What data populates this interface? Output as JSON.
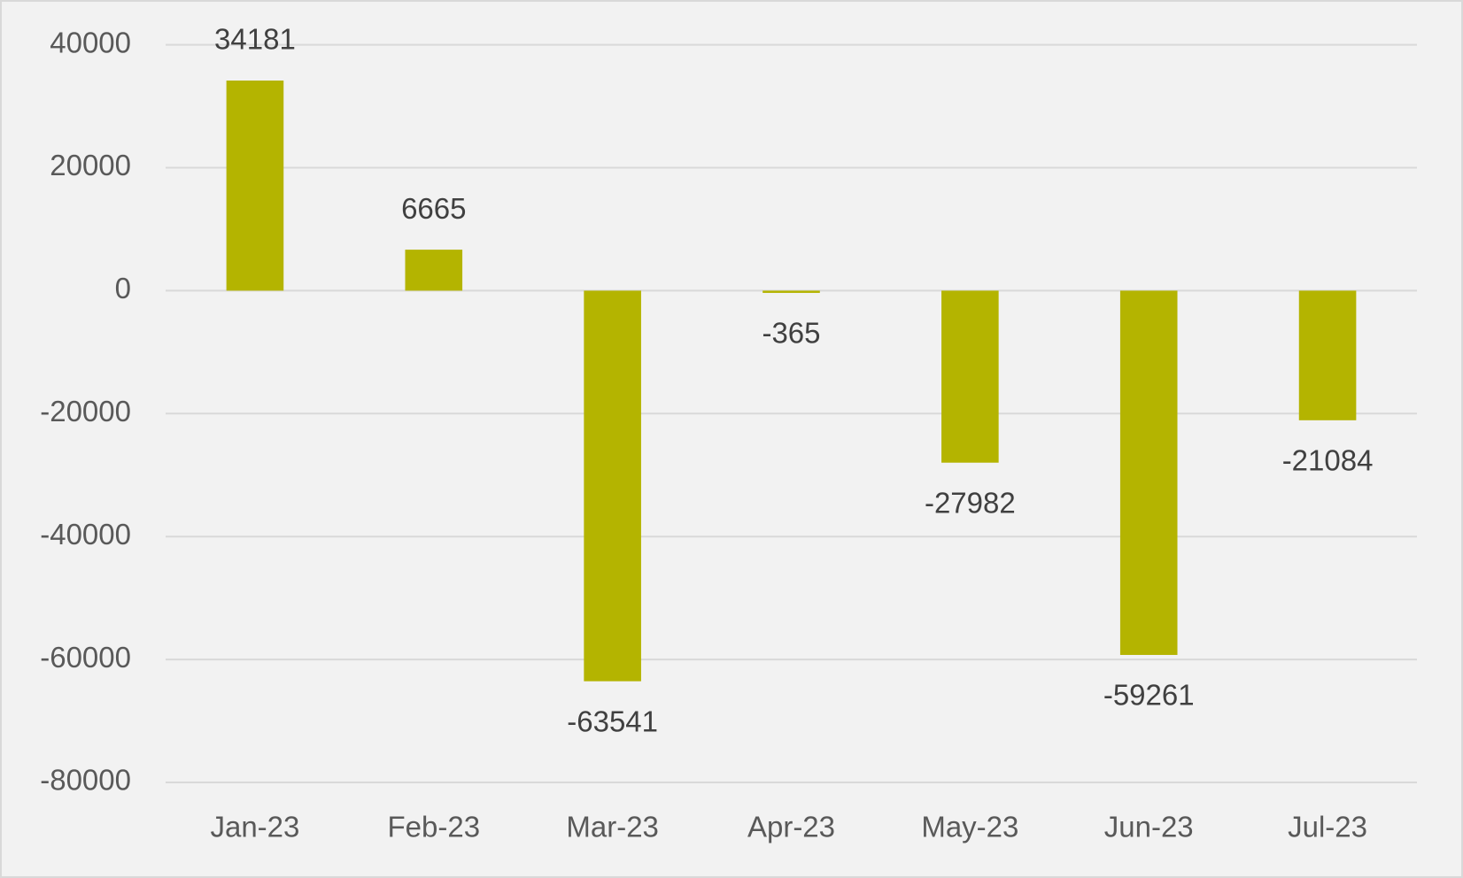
{
  "chart_data": {
    "type": "bar",
    "categories": [
      "Jan-23",
      "Feb-23",
      "Mar-23",
      "Apr-23",
      "May-23",
      "Jun-23",
      "Jul-23"
    ],
    "values": [
      34181,
      6665,
      -63541,
      -365,
      -27982,
      -59261,
      -21084
    ],
    "color": "#b4b400",
    "ylim": [
      -80000,
      40000
    ],
    "yticks": [
      -80000,
      -60000,
      -40000,
      -20000,
      0,
      20000,
      40000
    ],
    "grid": true
  }
}
